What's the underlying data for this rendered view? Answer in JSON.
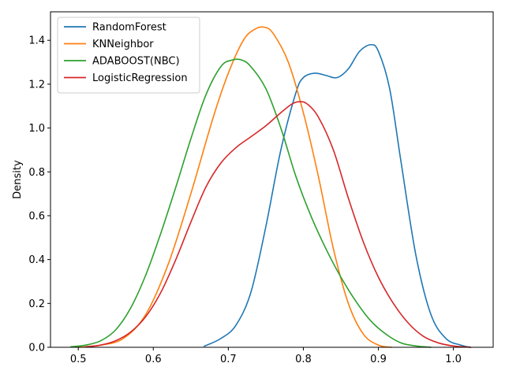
{
  "chart_data": {
    "type": "line",
    "title": "",
    "xlabel": "",
    "ylabel": "Density",
    "xlim": [
      0.463,
      1.053
    ],
    "ylim": [
      0,
      1.53
    ],
    "xticks": [
      0.5,
      0.6,
      0.7,
      0.8,
      0.9,
      1.0
    ],
    "xtick_labels": [
      "0.5",
      "0.6",
      "0.7",
      "0.8",
      "0.9",
      "1.0"
    ],
    "yticks": [
      0.0,
      0.2,
      0.4,
      0.6,
      0.8,
      1.0,
      1.2,
      1.4
    ],
    "ytick_labels": [
      "0.0",
      "0.2",
      "0.4",
      "0.6",
      "0.8",
      "1.0",
      "1.2",
      "1.4"
    ],
    "grid": false,
    "legend_position": "top-left",
    "series": [
      {
        "name": "RandomForest",
        "color": "#1f77b4",
        "x": [
          0.668,
          0.69,
          0.71,
          0.73,
          0.75,
          0.77,
          0.79,
          0.8,
          0.815,
          0.83,
          0.845,
          0.86,
          0.875,
          0.89,
          0.9,
          0.915,
          0.93,
          0.95,
          0.97,
          0.99,
          1.01,
          1.023
        ],
        "y": [
          0.005,
          0.04,
          0.1,
          0.25,
          0.55,
          0.9,
          1.16,
          1.23,
          1.25,
          1.24,
          1.23,
          1.27,
          1.35,
          1.38,
          1.35,
          1.18,
          0.85,
          0.42,
          0.15,
          0.04,
          0.01,
          0.0
        ]
      },
      {
        "name": "KNNeighbor",
        "color": "#ff7f0e",
        "x": [
          0.5,
          0.53,
          0.56,
          0.59,
          0.62,
          0.65,
          0.68,
          0.7,
          0.72,
          0.735,
          0.748,
          0.76,
          0.78,
          0.8,
          0.82,
          0.84,
          0.86,
          0.88,
          0.9,
          0.918
        ],
        "y": [
          0.0,
          0.01,
          0.04,
          0.15,
          0.38,
          0.7,
          1.05,
          1.25,
          1.4,
          1.45,
          1.46,
          1.43,
          1.3,
          1.07,
          0.78,
          0.45,
          0.2,
          0.06,
          0.01,
          0.0
        ]
      },
      {
        "name": "ADABOOST(NBC)",
        "color": "#2ca02c",
        "x": [
          0.49,
          0.51,
          0.53,
          0.55,
          0.57,
          0.59,
          0.61,
          0.63,
          0.65,
          0.67,
          0.69,
          0.705,
          0.718,
          0.73,
          0.75,
          0.77,
          0.79,
          0.81,
          0.83,
          0.85,
          0.87,
          0.89,
          0.91,
          0.93,
          0.95,
          0.97
        ],
        "y": [
          0.002,
          0.01,
          0.03,
          0.08,
          0.18,
          0.33,
          0.52,
          0.73,
          0.95,
          1.15,
          1.28,
          1.31,
          1.31,
          1.28,
          1.18,
          1.0,
          0.78,
          0.6,
          0.45,
          0.32,
          0.21,
          0.12,
          0.06,
          0.02,
          0.006,
          0.0
        ]
      },
      {
        "name": "LogisticRegression",
        "color": "#d62728",
        "x": [
          0.51,
          0.53,
          0.55,
          0.57,
          0.59,
          0.61,
          0.63,
          0.65,
          0.67,
          0.69,
          0.71,
          0.73,
          0.75,
          0.77,
          0.785,
          0.795,
          0.805,
          0.82,
          0.84,
          0.86,
          0.88,
          0.9,
          0.92,
          0.94,
          0.96,
          0.98,
          1.0,
          1.023
        ],
        "y": [
          0.002,
          0.01,
          0.03,
          0.07,
          0.14,
          0.25,
          0.4,
          0.57,
          0.73,
          0.84,
          0.91,
          0.96,
          1.01,
          1.07,
          1.11,
          1.12,
          1.11,
          1.05,
          0.9,
          0.68,
          0.48,
          0.32,
          0.2,
          0.11,
          0.05,
          0.02,
          0.006,
          0.0
        ]
      }
    ]
  }
}
